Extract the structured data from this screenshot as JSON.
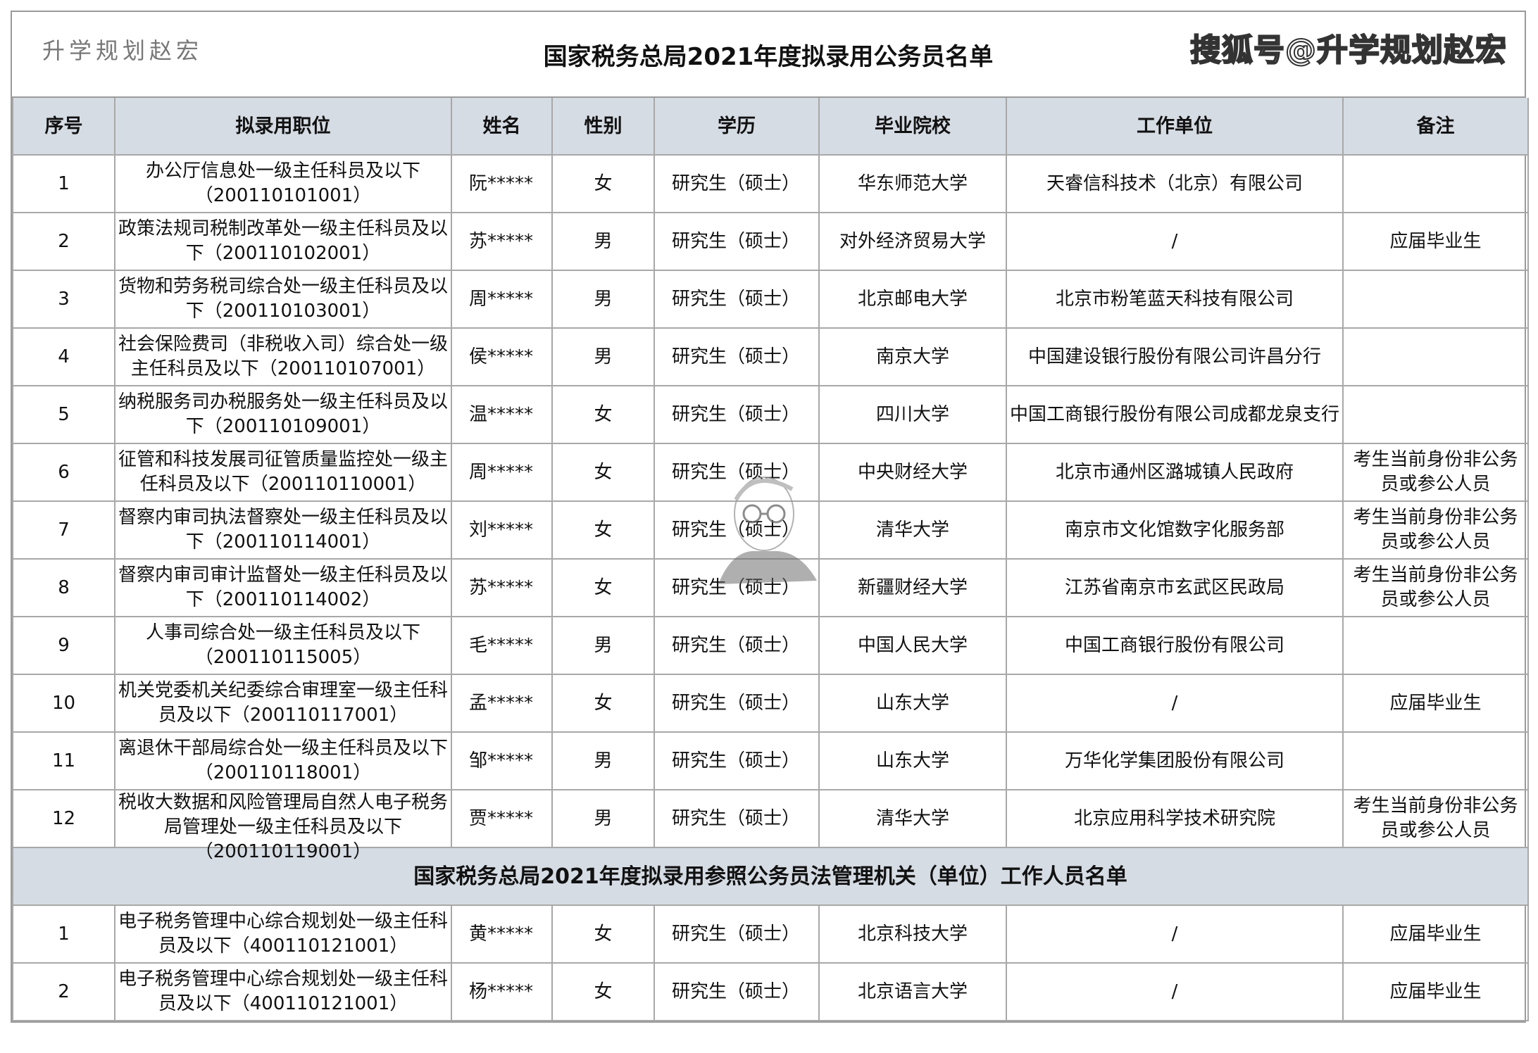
{
  "title": "国家税务总局2021年度拟录用公务员名单",
  "headers": [
    "序号",
    "拟录用职位",
    "姓名",
    "性别",
    "学历",
    "毕业院校",
    "工作单位",
    "备注"
  ],
  "rows": [
    [
      "1",
      "办公厅信息处一级主任科员及以下（200110101001）",
      "阮*****",
      "女",
      "研究生（硕士）",
      "华东师范大学",
      "天睿信科技术（北京）有限公司",
      ""
    ],
    [
      "2",
      "政策法规司税制改革处一级主任科员及以下（200110102001）",
      "苏*****",
      "男",
      "研究生（硕士）",
      "对外经济贸易大学",
      "/",
      "应届毕业生"
    ],
    [
      "3",
      "货物和劳务税司综合处一级主任科员及以下（200110103001）",
      "周*****",
      "男",
      "研究生（硕士）",
      "北京邮电大学",
      "北京市粉笔蓝天科技有限公司",
      ""
    ],
    [
      "4",
      "社会保险费司（非税收入司）综合处一级主任科员及以下（200110107001）",
      "侯*****",
      "男",
      "研究生（硕士）",
      "南京大学",
      "中国建设银行股份有限公司许昌分行",
      ""
    ],
    [
      "5",
      "纳税服务司办税服务处一级主任科员及以下（200110109001）",
      "温*****",
      "女",
      "研究生（硕士）",
      "四川大学",
      "中国工商银行股份有限公司成都龙泉支行",
      ""
    ],
    [
      "6",
      "征管和科技发展司征管质量监控处一级主任科员及以下（200110110001）",
      "周*****",
      "女",
      "研究生（硕士）",
      "中央财经大学",
      "北京市通州区潞城镇人民政府",
      "考生当前身份非公务员或参公人员"
    ],
    [
      "7",
      "督察内审司执法督察处一级主任科员及以下（200110114001）",
      "刘*****",
      "女",
      "研究生（硕士）",
      "清华大学",
      "南京市文化馆数字化服务部",
      "考生当前身份非公务员或参公人员"
    ],
    [
      "8",
      "督察内审司审计监督处一级主任科员及以下（200110114002）",
      "苏*****",
      "女",
      "研究生（硕士）",
      "新疆财经大学",
      "江苏省南京市玄武区民政局",
      "考生当前身份非公务员或参公人员"
    ],
    [
      "9",
      "人事司综合处一级主任科员及以下（200110115005）",
      "毛*****",
      "男",
      "研究生（硕士）",
      "中国人民大学",
      "中国工商银行股份有限公司",
      ""
    ],
    [
      "10",
      "机关党委机关纪委综合审理室一级主任科员及以下（200110117001）",
      "孟*****",
      "女",
      "研究生（硕士）",
      "山东大学",
      "/",
      "应届毕业生"
    ],
    [
      "11",
      "离退休干部局综合处一级主任科员及以下（200110118001）",
      "邹*****",
      "男",
      "研究生（硕士）",
      "山东大学",
      "万华化学集团股份有限公司",
      ""
    ],
    [
      "12",
      "税收大数据和风险管理局自然人电子税务局管理处一级主任科员及以下（200110119001）",
      "贾*****",
      "男",
      "研究生（硕士）",
      "清华大学",
      "北京应用科学技术研究院",
      "考生当前身份非公务员或参公人员"
    ]
  ],
  "section_title": "国家税务总局2021年度拟录用参照公务员法管理机关（单位）工作人员名单",
  "rows2": [
    [
      "1",
      "电子税务管理中心综合规划处一级主任科员及以下（400110121001）",
      "黄*****",
      "女",
      "研究生（硕士）",
      "北京科技大学",
      "/",
      "应届毕业生"
    ],
    [
      "2",
      "电子税务管理中心综合规划处一级主任科员及以下（400110121001）",
      "杨*****",
      "女",
      "研究生（硕士）",
      "北京语言大学",
      "/",
      "应届毕业生"
    ]
  ],
  "watermark": "升学规划赵宏",
  "sohu_watermark": "搜狐号@升学规划赵宏",
  "colors": {
    "header_bg": "#d6dce4",
    "border": "#a8a8a8"
  }
}
